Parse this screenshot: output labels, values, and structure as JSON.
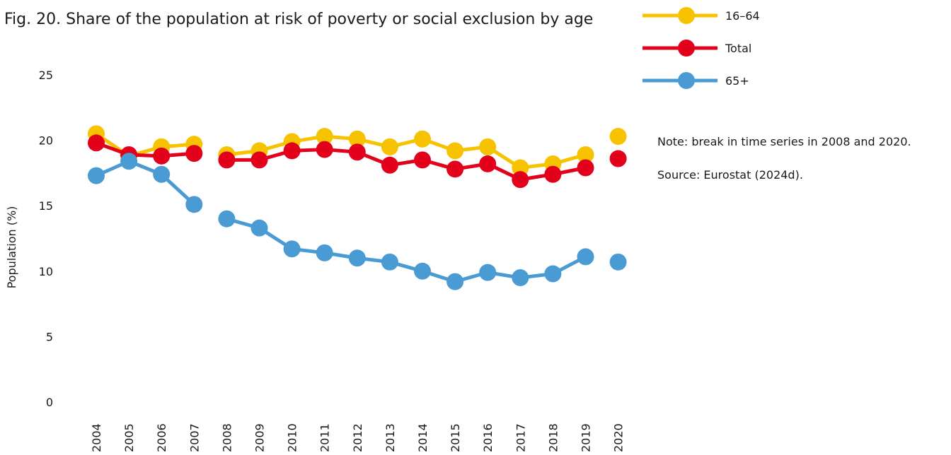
{
  "chart_data": {
    "type": "line",
    "title": "Fig. 20. Share of the population at risk of poverty or social exclusion by age",
    "ylabel": "Population (%)",
    "xlabel": "",
    "ylim": [
      0,
      25
    ],
    "yticks": [
      0,
      5,
      10,
      15,
      20,
      25
    ],
    "categories": [
      "2004",
      "2005",
      "2006",
      "2007",
      "2008",
      "2009",
      "2010",
      "2011",
      "2012",
      "2013",
      "2014",
      "2015",
      "2016",
      "2017",
      "2018",
      "2019",
      "2020"
    ],
    "breaks_after": [
      "2007",
      "2019"
    ],
    "grid": false,
    "legend_position": "top-right",
    "series": [
      {
        "name": "16–64",
        "color": "#f7c300",
        "values": [
          20.5,
          18.8,
          19.5,
          19.7,
          18.9,
          19.2,
          19.9,
          20.3,
          20.1,
          19.5,
          20.1,
          19.2,
          19.5,
          17.9,
          18.2,
          18.9,
          20.3
        ]
      },
      {
        "name": "Total",
        "color": "#e2001a",
        "values": [
          19.8,
          18.9,
          18.8,
          19.0,
          18.5,
          18.5,
          19.2,
          19.3,
          19.1,
          18.1,
          18.5,
          17.8,
          18.2,
          17.0,
          17.4,
          17.9,
          18.6
        ]
      },
      {
        "name": "65+",
        "color": "#4a9bd4",
        "values": [
          17.3,
          18.4,
          17.4,
          15.1,
          14.0,
          13.3,
          11.7,
          11.4,
          11.0,
          10.7,
          10.0,
          9.2,
          9.9,
          9.5,
          9.8,
          11.1,
          10.7
        ]
      }
    ],
    "notes": [
      "Note: break in time series in 2008 and 2020.",
      "Source: Eurostat (2024d)."
    ]
  }
}
